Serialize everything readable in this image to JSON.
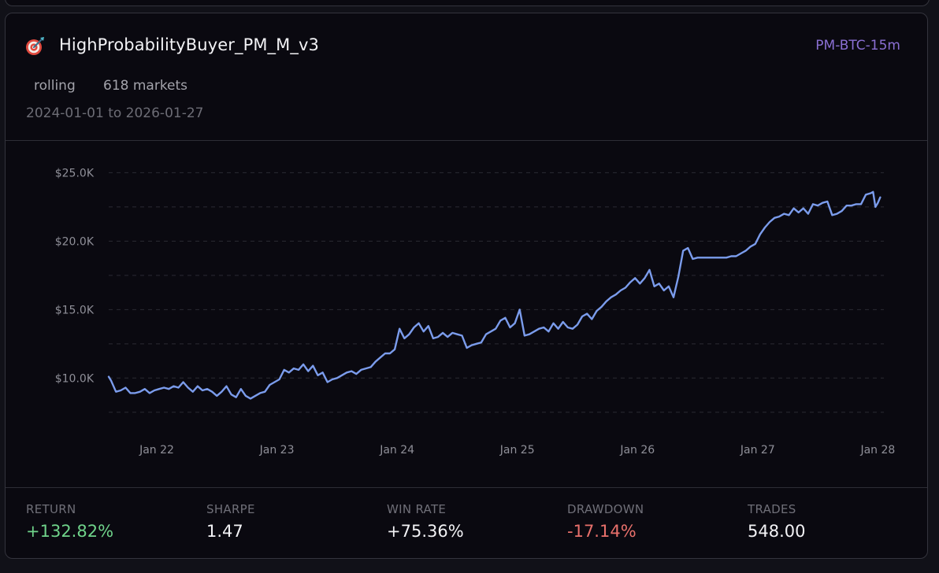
{
  "strategy": {
    "name": "HighProbabilityBuyer_PM_M_v3",
    "icon": "target-icon",
    "market_tag": "PM-BTC-15m",
    "mode": "rolling",
    "markets_count": "618 markets",
    "date_range": "2024-01-01 to 2026-01-27"
  },
  "colors": {
    "accent": "#7b9cec",
    "market_tag": "#8a6fd3",
    "positive": "#6fd38a",
    "negative": "#e8706b"
  },
  "stats": [
    {
      "label": "RETURN",
      "value": "+132.82%",
      "tone": "pos"
    },
    {
      "label": "SHARPE",
      "value": "1.47",
      "tone": ""
    },
    {
      "label": "WIN RATE",
      "value": "+75.36%",
      "tone": ""
    },
    {
      "label": "DRAWDOWN",
      "value": "-17.14%",
      "tone": "neg"
    },
    {
      "label": "TRADES",
      "value": "548.00",
      "tone": ""
    }
  ],
  "chart_data": {
    "type": "line",
    "y_tick_labels": [
      "$10.0K",
      "$15.0K",
      "$20.0K",
      "$25.0K"
    ],
    "y_ticks": [
      10000,
      15000,
      20000,
      25000
    ],
    "x_tick_labels": [
      "Jan 22",
      "Jan 23",
      "Jan 24",
      "Jan 25",
      "Jan 26",
      "Jan 27",
      "Jan 28"
    ],
    "x_ticks": [
      22,
      23,
      24,
      25,
      26,
      27,
      28
    ],
    "xlim": [
      21.6,
      28.05
    ],
    "ylim": [
      7200,
      25600
    ],
    "grid": "horizontal-dashed",
    "series": [
      {
        "x": [
          21.6,
          21.62,
          21.66,
          21.7,
          21.74,
          21.78,
          21.82,
          21.86,
          21.9,
          21.94,
          21.98,
          22.02,
          22.06,
          22.1,
          22.14,
          22.18,
          22.22,
          22.26,
          22.3,
          22.34,
          22.38,
          22.42,
          22.46,
          22.5,
          22.54,
          22.58,
          22.62,
          22.66,
          22.7,
          22.74,
          22.78,
          22.82,
          22.86,
          22.9,
          22.94,
          22.98,
          23.02,
          23.06,
          23.1,
          23.14,
          23.18,
          23.22,
          23.26,
          23.3,
          23.34,
          23.38,
          23.42,
          23.46,
          23.5,
          23.54,
          23.58,
          23.62,
          23.66,
          23.7,
          23.74,
          23.78,
          23.82,
          23.86,
          23.9,
          23.94,
          23.98,
          24.02,
          24.06,
          24.1,
          24.14,
          24.18,
          24.22,
          24.26,
          24.3,
          24.34,
          24.38,
          24.42,
          24.46,
          24.5,
          24.54,
          24.58,
          24.62,
          24.66,
          24.7,
          24.74,
          24.78,
          24.82,
          24.86,
          24.9,
          24.94,
          24.98,
          25.02,
          25.06,
          25.1,
          25.14,
          25.18,
          25.22,
          25.26,
          25.3,
          25.34,
          25.38,
          25.42,
          25.46,
          25.5,
          25.54,
          25.58,
          25.62,
          25.66,
          25.7,
          25.74,
          25.78,
          25.82,
          25.86,
          25.9,
          25.94,
          25.98,
          26.02,
          26.06,
          26.1,
          26.14,
          26.18,
          26.22,
          26.26,
          26.3,
          26.34,
          26.38,
          26.42,
          26.46,
          26.5,
          26.54,
          26.58,
          26.62,
          26.66,
          26.7,
          26.74,
          26.78,
          26.82,
          26.86,
          26.9,
          26.94,
          26.98,
          27.02,
          27.06,
          27.1,
          27.14,
          27.18,
          27.22,
          27.26,
          27.3,
          27.34,
          27.38,
          27.42,
          27.46,
          27.5,
          27.54,
          27.58,
          27.62,
          27.66,
          27.7,
          27.74,
          27.78,
          27.82,
          27.86,
          27.9,
          27.94,
          27.96,
          27.98,
          28.0,
          28.02
        ],
        "y": [
          10100,
          9800,
          9000,
          9100,
          9300,
          8900,
          8900,
          9000,
          9200,
          8900,
          9100,
          9200,
          9300,
          9200,
          9400,
          9300,
          9700,
          9300,
          9000,
          9400,
          9100,
          9200,
          9000,
          8700,
          9000,
          9400,
          8800,
          8600,
          9200,
          8700,
          8500,
          8700,
          8900,
          9000,
          9500,
          9700,
          9900,
          10600,
          10400,
          10700,
          10600,
          11000,
          10500,
          10900,
          10200,
          10400,
          9700,
          9900,
          10000,
          10200,
          10400,
          10500,
          10300,
          10600,
          10700,
          10800,
          11200,
          11500,
          11800,
          11800,
          12100,
          13600,
          12900,
          13200,
          13700,
          14000,
          13400,
          13800,
          12900,
          13000,
          13300,
          13000,
          13300,
          13200,
          13100,
          12200,
          12400,
          12500,
          12600,
          13200,
          13400,
          13600,
          14200,
          14400,
          13700,
          14000,
          15000,
          13100,
          13200,
          13400,
          13600,
          13700,
          13400,
          14000,
          13600,
          14100,
          13700,
          13600,
          13900,
          14500,
          14700,
          14300,
          14900,
          15200,
          15600,
          15900,
          16100,
          16400,
          16600,
          17000,
          17300,
          16900,
          17300,
          17900,
          16700,
          16900,
          16400,
          16700,
          15900,
          17400,
          19300,
          19500,
          18700,
          18800,
          18800,
          18800,
          18800,
          18800,
          18800,
          18800,
          18900,
          18900,
          19100,
          19300,
          19600,
          19800,
          20500,
          21000,
          21400,
          21700,
          21800,
          22000,
          21900,
          22400,
          22100,
          22400,
          22000,
          22700,
          22600,
          22800,
          22900,
          21900,
          22000,
          22200,
          22600,
          22600,
          22700,
          22700,
          23400,
          23500,
          23600,
          22500,
          22800,
          23200
        ]
      }
    ]
  }
}
